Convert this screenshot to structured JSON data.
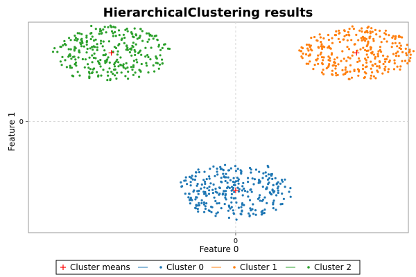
{
  "chart_data": {
    "type": "scatter",
    "title": "HierarchicalClustering results",
    "xlabel": "Feature 0",
    "ylabel": "Feature 1",
    "xlim": [
      -6.0,
      5.0
    ],
    "ylim": [
      -3.8,
      3.4
    ],
    "xticks": [
      {
        "value": 0,
        "label": "0"
      }
    ],
    "yticks": [
      {
        "value": 0,
        "label": "0"
      }
    ],
    "grid": true,
    "legend_position": "bottom",
    "series": [
      {
        "name": "Cluster 0",
        "color": "#1f77b4",
        "center": [
          0.0,
          -2.35
        ],
        "spread": [
          1.5,
          0.9
        ],
        "count": 300
      },
      {
        "name": "Cluster 1",
        "color": "#ff7f0e",
        "center": [
          3.5,
          2.35
        ],
        "spread": [
          1.6,
          0.85
        ],
        "count": 300
      },
      {
        "name": "Cluster 2",
        "color": "#2ca02c",
        "center": [
          -3.6,
          2.35
        ],
        "spread": [
          1.6,
          0.9
        ],
        "count": 300
      }
    ],
    "cluster_means": {
      "name": "Cluster means",
      "color": "#ff0000",
      "marker": "+",
      "points": [
        [
          0.0,
          -2.35
        ],
        [
          3.5,
          2.35
        ],
        [
          -3.6,
          2.35
        ]
      ]
    }
  }
}
